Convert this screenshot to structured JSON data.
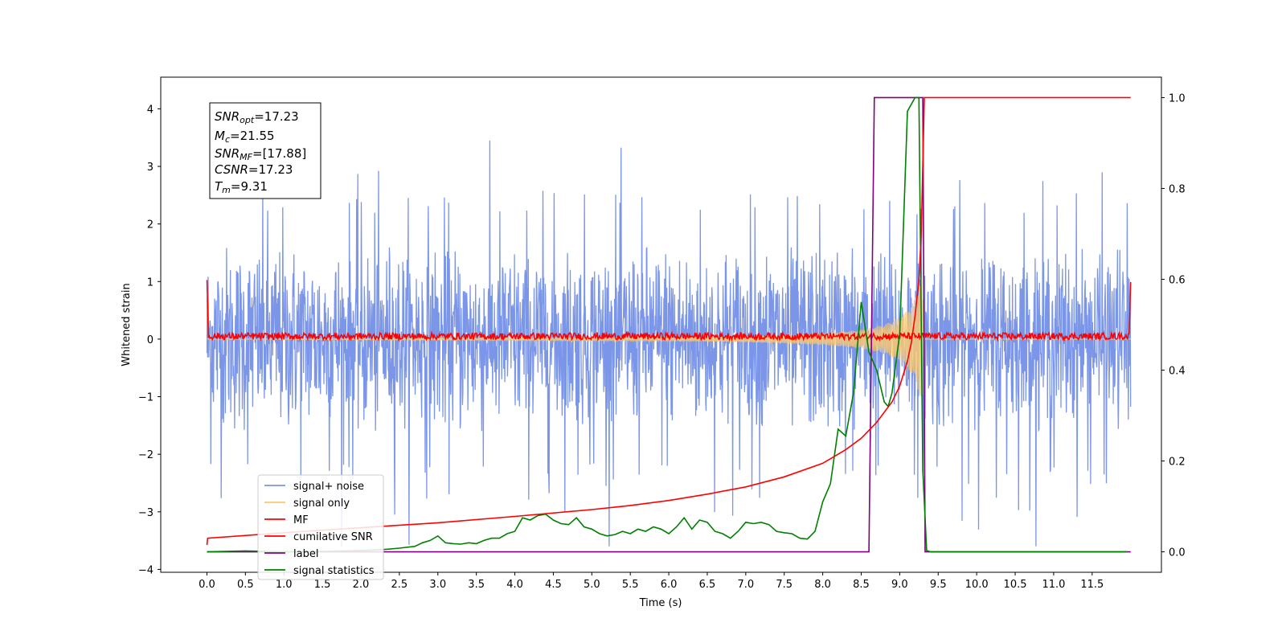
{
  "chart_data": {
    "type": "line",
    "title": "",
    "xlabel": "Time (s)",
    "ylabel": "Whitened strain",
    "xlim": [
      -0.6,
      12.4
    ],
    "ylim": [
      -4.05,
      4.55
    ],
    "y2lim": [
      -0.045,
      1.045
    ],
    "x_ticks": [
      "0.0",
      "0.5",
      "1.0",
      "1.5",
      "2.0",
      "2.5",
      "3.0",
      "3.5",
      "4.0",
      "4.5",
      "5.0",
      "5.5",
      "6.0",
      "6.5",
      "7.0",
      "7.5",
      "8.0",
      "8.5",
      "9.0",
      "9.5",
      "10.0",
      "10.5",
      "11.0",
      "11.5"
    ],
    "y_ticks": [
      "4",
      "3",
      "2",
      "1",
      "0",
      "−1",
      "−2",
      "−3",
      "−4"
    ],
    "y2_ticks": [
      "1.0",
      "0.8",
      "0.6",
      "0.4",
      "0.2",
      "0.0"
    ],
    "grid": false,
    "legend_position": "lower-left",
    "annotations": {
      "snr_opt": {
        "name": "SNR",
        "sub": "opt",
        "value": "=17.23"
      },
      "mc": {
        "name": "M",
        "sub": "c",
        "value": "=21.55"
      },
      "snr_mf": {
        "name": "SNR",
        "sub": "MF",
        "value": "=[17.88]"
      },
      "csnr": {
        "name": "CSNR",
        "sub": "",
        "value": "=17.23"
      },
      "tm": {
        "name": "T",
        "sub": "m",
        "value": "=9.31"
      }
    },
    "series": [
      {
        "name": "signal+ noise",
        "axis": "left",
        "color": "#7b96e8",
        "description_values": {
          "x_range": [
            0.0,
            12.0
          ],
          "mean": 0.0,
          "envelope_typical": [
            -1.8,
            1.8
          ],
          "extremes": [
            -3.6,
            3.45
          ]
        }
      },
      {
        "name": "signal only",
        "axis": "left",
        "color": "#f7c873",
        "x": [
          0.0,
          6.0,
          7.0,
          7.5,
          8.0,
          8.5,
          8.8,
          9.0,
          9.1,
          9.2,
          9.25,
          9.3,
          9.31,
          9.35,
          12.0
        ],
        "amplitude": [
          0.0,
          0.03,
          0.05,
          0.07,
          0.1,
          0.16,
          0.25,
          0.38,
          0.5,
          0.7,
          0.95,
          1.15,
          0.0,
          0.0,
          0.0
        ]
      },
      {
        "name": "MF",
        "axis": "left",
        "color": "#ff0000",
        "x": [
          0.0,
          0.02,
          11.98,
          12.0
        ],
        "y": [
          1.0,
          0.05,
          0.05,
          0.95
        ],
        "noise_amplitude": 0.1
      },
      {
        "name": "cumilative SNR",
        "axis": "right",
        "color": "#ff0000",
        "x": [
          0.0,
          0.01,
          1.0,
          2.0,
          3.0,
          4.0,
          5.0,
          5.5,
          6.0,
          6.5,
          7.0,
          7.5,
          8.0,
          8.3,
          8.5,
          8.7,
          8.9,
          9.0,
          9.1,
          9.15,
          9.2,
          9.25,
          9.28,
          9.3,
          9.32,
          10.0,
          11.0,
          12.0
        ],
        "y": [
          0.015,
          0.03,
          0.042,
          0.053,
          0.064,
          0.078,
          0.093,
          0.102,
          0.113,
          0.127,
          0.143,
          0.165,
          0.195,
          0.225,
          0.25,
          0.285,
          0.33,
          0.365,
          0.42,
          0.46,
          0.52,
          0.6,
          0.7,
          0.85,
          1.0,
          1.0,
          1.0,
          1.0
        ]
      },
      {
        "name": "label",
        "axis": "right",
        "color": "#800080",
        "x": [
          0.0,
          8.6,
          8.67,
          9.3,
          9.33,
          12.0
        ],
        "y": [
          0.0,
          0.0,
          1.0,
          1.0,
          0.0,
          0.0
        ]
      },
      {
        "name": "signal statistics",
        "axis": "right",
        "color": "#008000",
        "x": [
          0.0,
          0.5,
          1.0,
          1.5,
          2.0,
          2.3,
          2.5,
          2.7,
          2.8,
          2.9,
          3.0,
          3.1,
          3.2,
          3.3,
          3.4,
          3.5,
          3.6,
          3.7,
          3.8,
          3.9,
          4.0,
          4.1,
          4.2,
          4.3,
          4.4,
          4.5,
          4.6,
          4.7,
          4.8,
          4.9,
          5.0,
          5.1,
          5.2,
          5.3,
          5.4,
          5.5,
          5.6,
          5.7,
          5.8,
          5.9,
          6.0,
          6.1,
          6.2,
          6.3,
          6.4,
          6.5,
          6.6,
          6.7,
          6.8,
          6.9,
          7.0,
          7.1,
          7.2,
          7.3,
          7.4,
          7.5,
          7.6,
          7.7,
          7.8,
          7.9,
          8.0,
          8.1,
          8.2,
          8.3,
          8.4,
          8.5,
          8.6,
          8.7,
          8.8,
          8.85,
          8.9,
          9.0,
          9.1,
          9.2,
          9.25,
          9.3,
          9.35,
          9.4,
          9.5,
          10.0,
          11.0,
          11.95
        ],
        "y": [
          0.0,
          0.002,
          0.0,
          0.001,
          0.003,
          0.005,
          0.008,
          0.012,
          0.02,
          0.025,
          0.035,
          0.02,
          0.018,
          0.017,
          0.02,
          0.018,
          0.025,
          0.03,
          0.03,
          0.04,
          0.045,
          0.075,
          0.07,
          0.08,
          0.083,
          0.07,
          0.062,
          0.06,
          0.075,
          0.055,
          0.05,
          0.04,
          0.035,
          0.038,
          0.045,
          0.04,
          0.05,
          0.045,
          0.055,
          0.05,
          0.04,
          0.055,
          0.075,
          0.05,
          0.07,
          0.065,
          0.045,
          0.04,
          0.03,
          0.045,
          0.065,
          0.062,
          0.065,
          0.06,
          0.045,
          0.042,
          0.04,
          0.03,
          0.028,
          0.045,
          0.11,
          0.15,
          0.27,
          0.255,
          0.35,
          0.55,
          0.44,
          0.4,
          0.33,
          0.32,
          0.35,
          0.48,
          0.97,
          1.0,
          1.0,
          0.18,
          0.003,
          0.0,
          0.0,
          0.0,
          0.0,
          0.0
        ]
      }
    ]
  }
}
